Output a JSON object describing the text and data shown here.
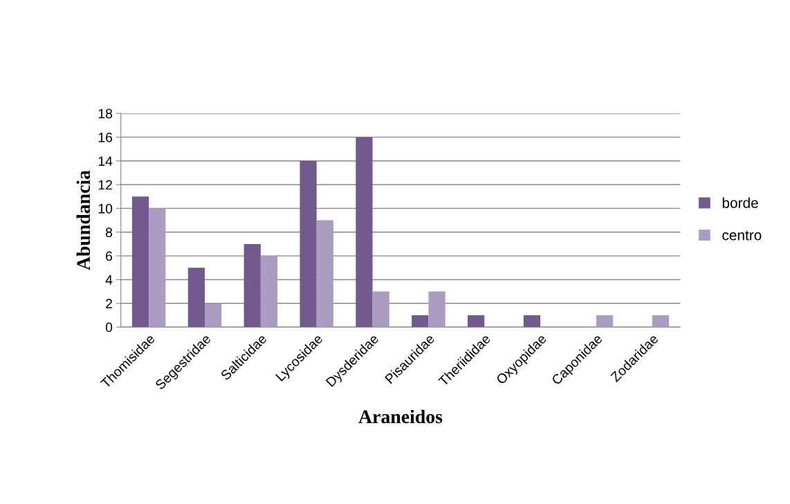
{
  "chart_data": {
    "type": "bar",
    "xlabel": "Araneidos",
    "ylabel": "Abundancia",
    "categories": [
      "Thomisidae",
      "Segestridae",
      "Salticidae",
      "Lycosidae",
      "Dysderidae",
      "Pisauridae",
      "Theriididae",
      "Oxyopidae",
      "Caponidae",
      "Zodaridae"
    ],
    "series": [
      {
        "name": "borde",
        "color": "#725a8f",
        "values": [
          11,
          5,
          7,
          14,
          16,
          1,
          1,
          1,
          0,
          0
        ]
      },
      {
        "name": "centro",
        "color": "#ab9dc1",
        "values": [
          10,
          2,
          6,
          9,
          3,
          3,
          0,
          0,
          1,
          1
        ]
      }
    ],
    "ylim": [
      0,
      18
    ],
    "yticks": [
      0,
      2,
      4,
      6,
      8,
      10,
      12,
      14,
      16,
      18
    ],
    "grid": "y",
    "legend": "right"
  }
}
